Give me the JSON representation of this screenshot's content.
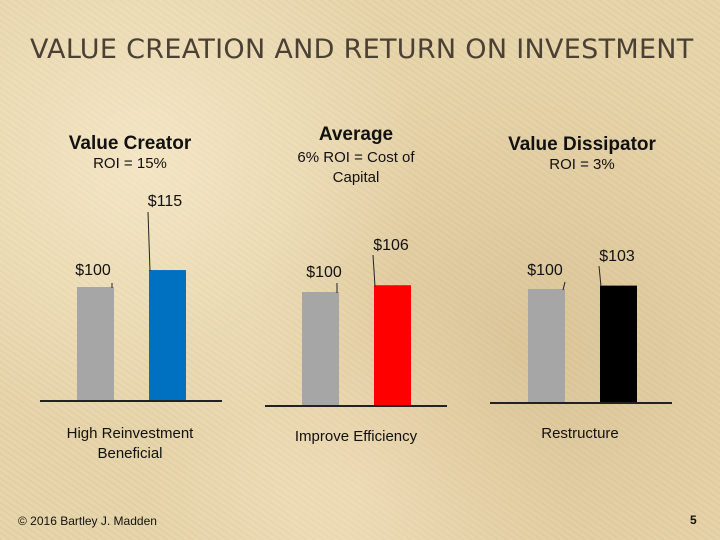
{
  "title": "VALUE CREATION AND RETURN ON INVESTMENT",
  "footer": "© 2016 Bartley J. Madden",
  "page_number": "5",
  "colors": {
    "baseline_bar": "#a6a6a6",
    "value_creator": "#0070c0",
    "average": "#ff0000",
    "value_dissipator": "#000000"
  },
  "chart_data": [
    {
      "type": "bar",
      "title": "Value Creator",
      "subtitle": "ROI = 15%",
      "categories": [
        "",
        ""
      ],
      "values": [
        100,
        115
      ],
      "value_labels": [
        "$100",
        "$115"
      ],
      "caption": "High Reinvestment Beneficial",
      "bar_colors": [
        "#a6a6a6",
        "#0070c0"
      ],
      "grid": false
    },
    {
      "type": "bar",
      "title": "Average",
      "subtitle": "6% ROI = Cost of Capital",
      "categories": [
        "",
        ""
      ],
      "values": [
        100,
        106
      ],
      "value_labels": [
        "$100",
        "$106"
      ],
      "caption": "Improve Efficiency",
      "bar_colors": [
        "#a6a6a6",
        "#ff0000"
      ],
      "grid": false
    },
    {
      "type": "bar",
      "title": "Value Dissipator",
      "subtitle": "ROI = 3%",
      "categories": [
        "",
        ""
      ],
      "values": [
        100,
        103
      ],
      "value_labels": [
        "$100",
        "$103"
      ],
      "caption": "Restructure",
      "bar_colors": [
        "#a6a6a6",
        "#000000"
      ],
      "grid": false
    }
  ]
}
